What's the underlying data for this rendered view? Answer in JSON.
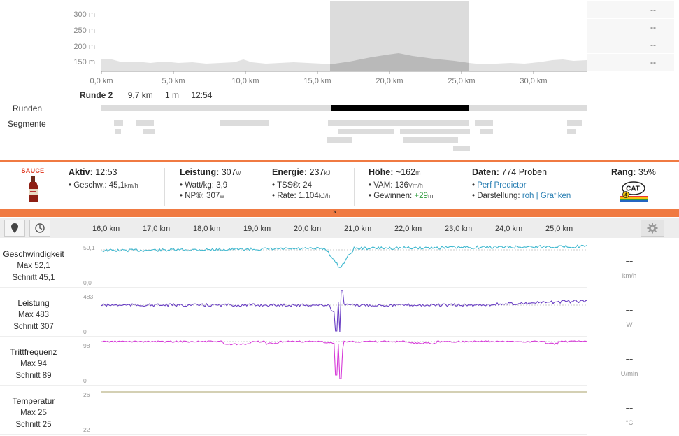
{
  "elevation": {
    "y_ticks": [
      "300 m",
      "250 m",
      "200 m",
      "150 m"
    ],
    "x_ticks": [
      "0,0 km",
      "5,0 km",
      "10,0 km",
      "15,0 km",
      "20,0 km",
      "25,0 km",
      "30,0 km"
    ],
    "selection_km": [
      16.0,
      25.7
    ],
    "total_km": 33.8,
    "side_values": [
      "--",
      "--",
      "--",
      "--"
    ]
  },
  "lap": {
    "name": "Runde 2",
    "distance": "9,7 km",
    "elevation": "1 m",
    "time": "12:54"
  },
  "rows": {
    "laps_label": "Runden",
    "segments_label": "Segmente"
  },
  "summary": {
    "logo_text": "SAUCE",
    "active": {
      "label": "Aktiv:",
      "value": "12:53",
      "line1_label": "Geschw.:",
      "line1_value": "45,1",
      "line1_unit": "km/h"
    },
    "power": {
      "label": "Leistung:",
      "value": "307",
      "unit": "w",
      "wkg_label": "Watt/kg:",
      "wkg_value": "3,9",
      "np_label": "NP®:",
      "np_value": "307",
      "np_unit": "w"
    },
    "energy": {
      "label": "Energie:",
      "value": "237",
      "unit": "kJ",
      "tss_label": "TSS®:",
      "tss_value": "24",
      "rate_label": "Rate:",
      "rate_value": "1.104",
      "rate_unit": "kJ/h"
    },
    "height": {
      "label": "Höhe:",
      "value": "~162",
      "unit": "m",
      "vam_label": "VAM:",
      "vam_value": "136",
      "vam_unit": "Vm/h",
      "gain_label": "Gewinnen:",
      "gain_value": "+29",
      "gain_unit": "m"
    },
    "data": {
      "label": "Daten:",
      "value": "774 Proben",
      "predictor": "Perf Predictor",
      "display_label": "Darstellung:",
      "raw": "roh",
      "sep": "|",
      "graphs": "Grafiken"
    },
    "rank": {
      "label": "Rang:",
      "value": "35%",
      "badge": "CAT",
      "badge_num": "4"
    }
  },
  "graph_header": {
    "km_ticks": [
      "16,0 km",
      "17,0 km",
      "18,0 km",
      "19,0 km",
      "20,0 km",
      "21,0 km",
      "22,0 km",
      "23,0 km",
      "24,0 km",
      "25,0 km"
    ]
  },
  "graphs": [
    {
      "name": "Geschwindigkeit",
      "max": "Max 52,1",
      "avg": "Schnitt 45,1",
      "ymax": "59,1",
      "ymin": "0,0",
      "value": "--",
      "unit": "km/h",
      "color": "#3fb8cf"
    },
    {
      "name": "Leistung",
      "max": "Max 483",
      "avg": "Schnitt 307",
      "ymax": "483",
      "ymin": "0",
      "value": "--",
      "unit": "W",
      "color": "#6a3fc4"
    },
    {
      "name": "Trittfrequenz",
      "max": "Max 94",
      "avg": "Schnitt 89",
      "ymax": "98",
      "ymin": "0",
      "value": "--",
      "unit": "U/min",
      "color": "#d63ad8"
    },
    {
      "name": "Temperatur",
      "max": "Max 25",
      "avg": "Schnitt 25",
      "ymax": "26",
      "ymin": "22",
      "value": "--",
      "unit": "°C",
      "color": "#a8a06a"
    }
  ]
}
